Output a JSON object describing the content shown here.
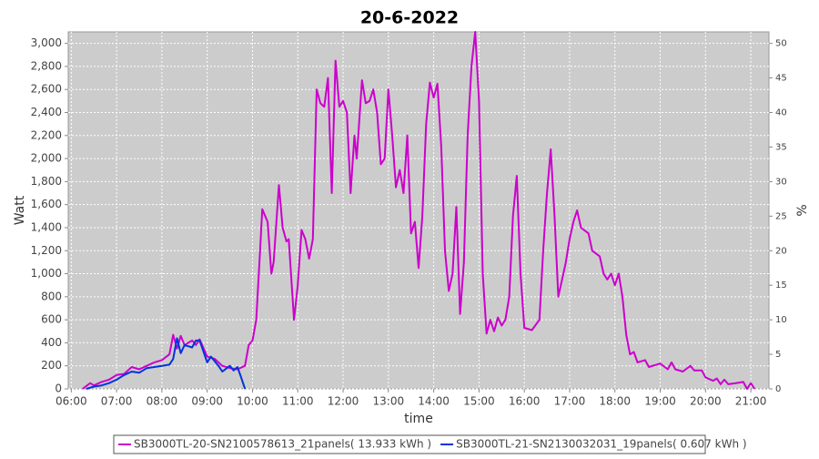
{
  "chart_data": {
    "type": "line",
    "title": "20-6-2022",
    "x_label": "time",
    "y_label": "Watt",
    "y2_label": "%",
    "xlim": [
      "05:56",
      "21:24"
    ],
    "xticks": [
      "06:00",
      "07:00",
      "08:00",
      "09:00",
      "10:00",
      "11:00",
      "12:00",
      "13:00",
      "14:00",
      "15:00",
      "16:00",
      "17:00",
      "18:00",
      "19:00",
      "20:00",
      "21:00"
    ],
    "ylim": [
      0,
      3100
    ],
    "yticks": [
      0,
      200,
      400,
      600,
      800,
      {
        "value": 1000,
        "label": "1,000"
      },
      {
        "value": 1200,
        "label": "1,200"
      },
      {
        "value": 1400,
        "label": "1,400"
      },
      {
        "value": 1600,
        "label": "1,600"
      },
      {
        "value": 1800,
        "label": "1,800"
      },
      {
        "value": 2000,
        "label": "2,000"
      },
      {
        "value": 2200,
        "label": "2,200"
      },
      {
        "value": 2400,
        "label": "2,400"
      },
      {
        "value": 2600,
        "label": "2,600"
      },
      {
        "value": 2800,
        "label": "2,800"
      },
      {
        "value": 3000,
        "label": "3,000"
      }
    ],
    "y2lim": [
      0,
      51.67
    ],
    "y2ticks": [
      0,
      5,
      10,
      15,
      20,
      25,
      30,
      35,
      40,
      45,
      50
    ],
    "grid": true,
    "series": [
      {
        "name": "SB3000TL-20-SN2100578613_21panels( 13.933 kWh )",
        "color": "#cc00cc",
        "x": [
          "06:15",
          "06:25",
          "06:30",
          "06:40",
          "06:50",
          "07:00",
          "07:10",
          "07:20",
          "07:30",
          "07:40",
          "07:50",
          "08:00",
          "08:10",
          "08:15",
          "08:20",
          "08:25",
          "08:30",
          "08:40",
          "08:45",
          "08:50",
          "09:00",
          "09:10",
          "09:20",
          "09:30",
          "09:40",
          "09:50",
          "09:55",
          "10:00",
          "10:05",
          "10:10",
          "10:13",
          "10:20",
          "10:25",
          "10:28",
          "10:35",
          "10:40",
          "10:45",
          "10:48",
          "10:55",
          "11:00",
          "11:05",
          "11:10",
          "11:15",
          "11:20",
          "11:25",
          "11:30",
          "11:35",
          "11:40",
          "11:45",
          "11:50",
          "11:55",
          "12:00",
          "12:05",
          "12:10",
          "12:15",
          "12:18",
          "12:25",
          "12:30",
          "12:35",
          "12:40",
          "12:45",
          "12:50",
          "12:55",
          "13:00",
          "13:05",
          "13:10",
          "13:15",
          "13:20",
          "13:25",
          "13:30",
          "13:35",
          "13:40",
          "13:45",
          "13:50",
          "13:55",
          "14:00",
          "14:05",
          "14:10",
          "14:15",
          "14:20",
          "14:25",
          "14:30",
          "14:35",
          "14:40",
          "14:45",
          "14:50",
          "14:55",
          "15:00",
          "15:05",
          "15:10",
          "15:15",
          "15:20",
          "15:25",
          "15:30",
          "15:35",
          "15:40",
          "15:45",
          "15:50",
          "15:55",
          "16:00",
          "16:10",
          "16:20",
          "16:25",
          "16:30",
          "16:35",
          "16:40",
          "16:45",
          "16:50",
          "16:55",
          "17:00",
          "17:05",
          "17:10",
          "17:15",
          "17:25",
          "17:30",
          "17:40",
          "17:45",
          "17:50",
          "17:55",
          "18:00",
          "18:05",
          "18:10",
          "18:15",
          "18:20",
          "18:25",
          "18:30",
          "18:40",
          "18:45",
          "18:50",
          "19:00",
          "19:10",
          "19:15",
          "19:20",
          "19:30",
          "19:40",
          "19:45",
          "19:55",
          "20:00",
          "20:10",
          "20:15",
          "20:20",
          "20:25",
          "20:30",
          "20:40",
          "20:50",
          "20:55",
          "21:00",
          "21:05"
        ],
        "values": [
          0,
          50,
          30,
          60,
          80,
          120,
          130,
          190,
          170,
          200,
          230,
          250,
          300,
          470,
          350,
          460,
          380,
          420,
          380,
          430,
          280,
          260,
          200,
          180,
          170,
          200,
          380,
          420,
          600,
          1200,
          1560,
          1450,
          1000,
          1100,
          1770,
          1400,
          1280,
          1300,
          600,
          900,
          1380,
          1300,
          1130,
          1300,
          2600,
          2480,
          2450,
          2700,
          1700,
          2850,
          2450,
          2500,
          2400,
          1700,
          2200,
          2000,
          2680,
          2480,
          2500,
          2600,
          2400,
          1950,
          2000,
          2600,
          2200,
          1750,
          1900,
          1700,
          2200,
          1350,
          1450,
          1050,
          1500,
          2300,
          2660,
          2530,
          2650,
          2100,
          1200,
          850,
          1000,
          1580,
          650,
          1100,
          2200,
          2800,
          3100,
          2500,
          1000,
          480,
          600,
          500,
          620,
          550,
          600,
          800,
          1500,
          1850,
          1000,
          530,
          510,
          600,
          1200,
          1700,
          2080,
          1500,
          800,
          950,
          1100,
          1300,
          1450,
          1550,
          1400,
          1350,
          1200,
          1150,
          1000,
          950,
          1000,
          900,
          1000,
          800,
          470,
          300,
          320,
          230,
          250,
          190,
          200,
          220,
          170,
          230,
          170,
          150,
          200,
          160,
          160,
          100,
          70,
          90,
          40,
          80,
          40,
          50,
          60,
          0,
          50,
          0
        ]
      },
      {
        "name": "SB3000TL-21-SN2130032031_19panels( 0.607 kWh )",
        "color": "#0033dd",
        "x": [
          "06:20",
          "06:30",
          "06:40",
          "06:50",
          "07:00",
          "07:10",
          "07:20",
          "07:30",
          "07:40",
          "07:50",
          "08:00",
          "08:10",
          "08:15",
          "08:20",
          "08:25",
          "08:30",
          "08:40",
          "08:45",
          "08:50",
          "09:00",
          "09:05",
          "09:15",
          "09:20",
          "09:30",
          "09:35",
          "09:40",
          "09:45",
          "09:50"
        ],
        "values": [
          0,
          20,
          30,
          50,
          80,
          120,
          150,
          140,
          180,
          190,
          200,
          210,
          260,
          440,
          310,
          380,
          360,
          420,
          420,
          230,
          280,
          200,
          150,
          200,
          160,
          190,
          100,
          0
        ]
      }
    ]
  }
}
